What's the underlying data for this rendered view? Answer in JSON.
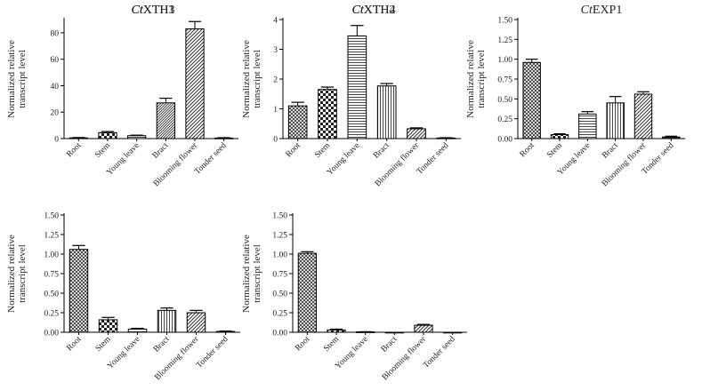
{
  "figure": {
    "ylabel_line1": "Normalized relative",
    "ylabel_line2": "transcript level",
    "categories": [
      "Root",
      "Stem",
      "Young leave",
      "Bract",
      "Blooming flower",
      "Tonder seed"
    ]
  },
  "chart_data": [
    {
      "type": "bar",
      "title_italic": "Ct",
      "title_rest": "XTH1",
      "ylabel": "Normalized relative transcript level",
      "categories": [
        "Root",
        "Stem",
        "Young leave",
        "Bract",
        "Blooming flower",
        "Tonder seed"
      ],
      "values": [
        0.5,
        4.5,
        2.2,
        27,
        83,
        0.4
      ],
      "errors": [
        0.3,
        0.8,
        0.4,
        3.5,
        5.5,
        0.3
      ],
      "ylim": [
        0,
        90
      ],
      "yticks": [
        0,
        20,
        40,
        60,
        80
      ],
      "ytick_labels": [
        "0",
        "20",
        "40",
        "60",
        "80"
      ],
      "patterns": [
        "cross",
        "check",
        "hlines",
        "dense",
        "diag",
        "dark"
      ]
    },
    {
      "type": "bar",
      "title_italic": "Ct",
      "title_rest": "XTH2",
      "ylabel": "Normalized relative transcript level",
      "categories": [
        "Root",
        "Stem",
        "Young leave",
        "Bract",
        "Blooming flower",
        "Tonder seed"
      ],
      "values": [
        1.1,
        1.65,
        3.45,
        1.77,
        0.33,
        0.02
      ],
      "errors": [
        0.12,
        0.08,
        0.35,
        0.08,
        0.03,
        0.01
      ],
      "ylim": [
        0,
        4
      ],
      "yticks": [
        0,
        1,
        2,
        3,
        4
      ],
      "ytick_labels": [
        "0",
        "1",
        "2",
        "3",
        "4"
      ],
      "patterns": [
        "cross",
        "check",
        "hlines",
        "vlines",
        "diag",
        "dark"
      ]
    },
    {
      "type": "bar",
      "title_italic": "Ct",
      "title_rest": "EXP1",
      "ylabel": "Normalized relative transcript level",
      "categories": [
        "Root",
        "Stem",
        "Young leave",
        "Bract",
        "Blooming flower",
        "Tonder seed"
      ],
      "values": [
        0.96,
        0.05,
        0.31,
        0.45,
        0.56,
        0.02
      ],
      "errors": [
        0.04,
        0.01,
        0.03,
        0.08,
        0.03,
        0.01
      ],
      "ylim": [
        0,
        1.5
      ],
      "yticks": [
        0,
        0.25,
        0.5,
        0.75,
        1.0,
        1.25,
        1.5
      ],
      "ytick_labels": [
        "0.00",
        "0.25",
        "0.50",
        "0.75",
        "1.00",
        "1.25",
        "1.50"
      ],
      "patterns": [
        "cross",
        "check",
        "hlines",
        "vlines",
        "diag",
        "dark"
      ]
    },
    {
      "type": "bar",
      "title_italic": "Ct",
      "title_rest": "XTH3",
      "ylabel": "Normalized relative transcript level",
      "categories": [
        "Root",
        "Stem",
        "Young leave",
        "Bract",
        "Blooming flower",
        "Tonder seed"
      ],
      "values": [
        1.06,
        0.16,
        0.04,
        0.28,
        0.25,
        0.01
      ],
      "errors": [
        0.05,
        0.03,
        0.01,
        0.03,
        0.03,
        0.005
      ],
      "ylim": [
        0,
        1.5
      ],
      "yticks": [
        0,
        0.25,
        0.5,
        0.75,
        1.0,
        1.25,
        1.5
      ],
      "ytick_labels": [
        "0.00",
        "0.25",
        "0.50",
        "0.75",
        "1.00",
        "1.25",
        "1.50"
      ],
      "patterns": [
        "cross",
        "check",
        "hlines",
        "vlines",
        "diag",
        "dark"
      ]
    },
    {
      "type": "bar",
      "title_italic": "Ct",
      "title_rest": "XTH4",
      "ylabel": "Normalized relative transcript level",
      "categories": [
        "Root",
        "Stem",
        "Young leave",
        "Bract",
        "Blooming flower",
        "Tonder seed"
      ],
      "values": [
        1.01,
        0.03,
        0.005,
        0.0,
        0.09,
        0.0
      ],
      "errors": [
        0.02,
        0.01,
        0.002,
        0.0,
        0.01,
        0.0
      ],
      "ylim": [
        0,
        1.5
      ],
      "yticks": [
        0,
        0.25,
        0.5,
        0.75,
        1.0,
        1.25,
        1.5
      ],
      "ytick_labels": [
        "0.00",
        "0.25",
        "0.50",
        "0.75",
        "1.00",
        "1.25",
        "1.50"
      ],
      "patterns": [
        "cross",
        "check",
        "hlines",
        "vlines",
        "diag",
        "dark"
      ]
    }
  ]
}
